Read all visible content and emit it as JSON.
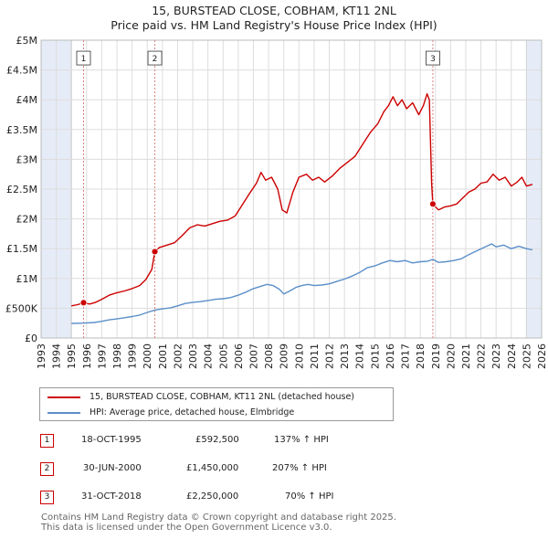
{
  "header": {
    "title_line1": "15, BURSTEAD CLOSE, COBHAM, KT11 2NL",
    "title_line2": "Price paid vs. HM Land Registry's House Price Index (HPI)"
  },
  "legend": {
    "property_label": "15, BURSTEAD CLOSE, COBHAM, KT11 2NL (detached house)",
    "hpi_label": "HPI: Average price, detached house, Elmbridge"
  },
  "transactions": [
    {
      "num": "1",
      "date": "18-OCT-1995",
      "price": "£592,500",
      "hpi": "137% ↑ HPI"
    },
    {
      "num": "2",
      "date": "30-JUN-2000",
      "price": "£1,450,000",
      "hpi": "207% ↑ HPI"
    },
    {
      "num": "3",
      "date": "31-OCT-2018",
      "price": "£2,250,000",
      "hpi": "70% ↑ HPI"
    }
  ],
  "footer": {
    "line1": "Contains HM Land Registry data © Crown copyright and database right 2025.",
    "line2": "This data is licensed under the Open Government Licence v3.0."
  },
  "colors": {
    "property": "#cc0000",
    "hpi": "#5b8fc9",
    "shade": "#e6ecf7",
    "marker_line": "#d98080"
  },
  "chart_data": {
    "type": "line",
    "title": "15, BURSTEAD CLOSE, COBHAM, KT11 2NL — Price paid vs. HM Land Registry's House Price Index (HPI)",
    "xlim": [
      1993,
      2026
    ],
    "ylim": [
      0,
      5000000
    ],
    "x_ticks": [
      "1993",
      "1994",
      "1995",
      "1996",
      "1997",
      "1998",
      "1999",
      "2000",
      "2001",
      "2002",
      "2003",
      "2004",
      "2005",
      "2006",
      "2007",
      "2008",
      "2009",
      "2010",
      "2011",
      "2012",
      "2013",
      "2014",
      "2015",
      "2016",
      "2017",
      "2018",
      "2019",
      "2020",
      "2021",
      "2022",
      "2023",
      "2024",
      "2025",
      "2026"
    ],
    "y_ticks": [
      {
        "value": 0,
        "label": "£0"
      },
      {
        "value": 500000,
        "label": "£500K"
      },
      {
        "value": 1000000,
        "label": "£1M"
      },
      {
        "value": 1500000,
        "label": "£1.5M"
      },
      {
        "value": 2000000,
        "label": "£2M"
      },
      {
        "value": 2500000,
        "label": "£2.5M"
      },
      {
        "value": 3000000,
        "label": "£3M"
      },
      {
        "value": 3500000,
        "label": "£3.5M"
      },
      {
        "value": 4000000,
        "label": "£4M"
      },
      {
        "value": 4500000,
        "label": "£4.5M"
      },
      {
        "value": 5000000,
        "label": "£5M"
      }
    ],
    "shaded_ranges": [
      [
        1993,
        1995.0
      ],
      [
        2025.0,
        2026
      ]
    ],
    "series": [
      {
        "name": "15, BURSTEAD CLOSE, COBHAM, KT11 2NL (detached house)",
        "points": [
          [
            1995.0,
            540000
          ],
          [
            1995.4,
            560000
          ],
          [
            1995.8,
            592500
          ],
          [
            1996.2,
            570000
          ],
          [
            1996.6,
            600000
          ],
          [
            1997.0,
            650000
          ],
          [
            1997.5,
            720000
          ],
          [
            1998.0,
            760000
          ],
          [
            1998.5,
            790000
          ],
          [
            1999.0,
            830000
          ],
          [
            1999.5,
            880000
          ],
          [
            1999.9,
            980000
          ],
          [
            2000.3,
            1150000
          ],
          [
            2000.5,
            1450000
          ],
          [
            2000.8,
            1520000
          ],
          [
            2001.3,
            1560000
          ],
          [
            2001.8,
            1600000
          ],
          [
            2002.3,
            1720000
          ],
          [
            2002.8,
            1850000
          ],
          [
            2003.3,
            1900000
          ],
          [
            2003.8,
            1880000
          ],
          [
            2004.3,
            1920000
          ],
          [
            2004.8,
            1960000
          ],
          [
            2005.3,
            1980000
          ],
          [
            2005.8,
            2050000
          ],
          [
            2006.3,
            2250000
          ],
          [
            2006.8,
            2450000
          ],
          [
            2007.2,
            2600000
          ],
          [
            2007.5,
            2780000
          ],
          [
            2007.8,
            2650000
          ],
          [
            2008.2,
            2700000
          ],
          [
            2008.6,
            2500000
          ],
          [
            2008.9,
            2150000
          ],
          [
            2009.2,
            2100000
          ],
          [
            2009.6,
            2450000
          ],
          [
            2010.0,
            2700000
          ],
          [
            2010.5,
            2750000
          ],
          [
            2010.9,
            2650000
          ],
          [
            2011.3,
            2700000
          ],
          [
            2011.7,
            2620000
          ],
          [
            2012.2,
            2720000
          ],
          [
            2012.7,
            2850000
          ],
          [
            2013.2,
            2950000
          ],
          [
            2013.7,
            3050000
          ],
          [
            2014.2,
            3250000
          ],
          [
            2014.7,
            3450000
          ],
          [
            2015.2,
            3600000
          ],
          [
            2015.6,
            3800000
          ],
          [
            2015.9,
            3900000
          ],
          [
            2016.2,
            4050000
          ],
          [
            2016.5,
            3900000
          ],
          [
            2016.8,
            4000000
          ],
          [
            2017.1,
            3850000
          ],
          [
            2017.5,
            3950000
          ],
          [
            2017.9,
            3750000
          ],
          [
            2018.2,
            3900000
          ],
          [
            2018.45,
            4100000
          ],
          [
            2018.6,
            4000000
          ],
          [
            2018.75,
            2600000
          ],
          [
            2018.83,
            2250000
          ],
          [
            2019.2,
            2150000
          ],
          [
            2019.6,
            2200000
          ],
          [
            2020.0,
            2220000
          ],
          [
            2020.4,
            2250000
          ],
          [
            2020.8,
            2350000
          ],
          [
            2021.2,
            2450000
          ],
          [
            2021.6,
            2500000
          ],
          [
            2022.0,
            2600000
          ],
          [
            2022.4,
            2620000
          ],
          [
            2022.8,
            2750000
          ],
          [
            2023.2,
            2650000
          ],
          [
            2023.6,
            2700000
          ],
          [
            2024.0,
            2550000
          ],
          [
            2024.4,
            2620000
          ],
          [
            2024.7,
            2700000
          ],
          [
            2025.0,
            2550000
          ],
          [
            2025.4,
            2580000
          ]
        ]
      },
      {
        "name": "HPI: Average price, detached house, Elmbridge",
        "points": [
          [
            1995.0,
            245000
          ],
          [
            1995.8,
            250000
          ],
          [
            1996.5,
            260000
          ],
          [
            1997.0,
            280000
          ],
          [
            1997.5,
            305000
          ],
          [
            1998.0,
            320000
          ],
          [
            1998.5,
            340000
          ],
          [
            1999.0,
            360000
          ],
          [
            1999.5,
            385000
          ],
          [
            2000.0,
            430000
          ],
          [
            2000.5,
            470000
          ],
          [
            2001.0,
            490000
          ],
          [
            2001.5,
            505000
          ],
          [
            2002.0,
            540000
          ],
          [
            2002.5,
            580000
          ],
          [
            2003.0,
            600000
          ],
          [
            2003.5,
            610000
          ],
          [
            2004.0,
            630000
          ],
          [
            2004.5,
            650000
          ],
          [
            2005.0,
            660000
          ],
          [
            2005.5,
            680000
          ],
          [
            2006.0,
            720000
          ],
          [
            2006.5,
            770000
          ],
          [
            2007.0,
            830000
          ],
          [
            2007.5,
            870000
          ],
          [
            2007.9,
            900000
          ],
          [
            2008.3,
            880000
          ],
          [
            2008.7,
            820000
          ],
          [
            2009.0,
            740000
          ],
          [
            2009.4,
            790000
          ],
          [
            2009.8,
            850000
          ],
          [
            2010.2,
            880000
          ],
          [
            2010.6,
            900000
          ],
          [
            2011.0,
            880000
          ],
          [
            2011.5,
            890000
          ],
          [
            2012.0,
            910000
          ],
          [
            2012.5,
            950000
          ],
          [
            2013.0,
            990000
          ],
          [
            2013.5,
            1040000
          ],
          [
            2014.0,
            1100000
          ],
          [
            2014.5,
            1180000
          ],
          [
            2015.0,
            1210000
          ],
          [
            2015.5,
            1260000
          ],
          [
            2016.0,
            1300000
          ],
          [
            2016.5,
            1280000
          ],
          [
            2017.0,
            1300000
          ],
          [
            2017.5,
            1260000
          ],
          [
            2018.0,
            1280000
          ],
          [
            2018.5,
            1290000
          ],
          [
            2018.83,
            1320000
          ],
          [
            2019.2,
            1270000
          ],
          [
            2019.7,
            1280000
          ],
          [
            2020.2,
            1300000
          ],
          [
            2020.7,
            1330000
          ],
          [
            2021.2,
            1400000
          ],
          [
            2021.7,
            1460000
          ],
          [
            2022.2,
            1520000
          ],
          [
            2022.7,
            1580000
          ],
          [
            2023.0,
            1530000
          ],
          [
            2023.5,
            1560000
          ],
          [
            2024.0,
            1500000
          ],
          [
            2024.5,
            1540000
          ],
          [
            2025.0,
            1500000
          ],
          [
            2025.4,
            1480000
          ]
        ]
      }
    ],
    "markers": [
      {
        "num": "1",
        "x": 1995.8,
        "y": 592500
      },
      {
        "num": "2",
        "x": 2000.5,
        "y": 1450000
      },
      {
        "num": "3",
        "x": 2018.83,
        "y": 2250000
      }
    ]
  }
}
